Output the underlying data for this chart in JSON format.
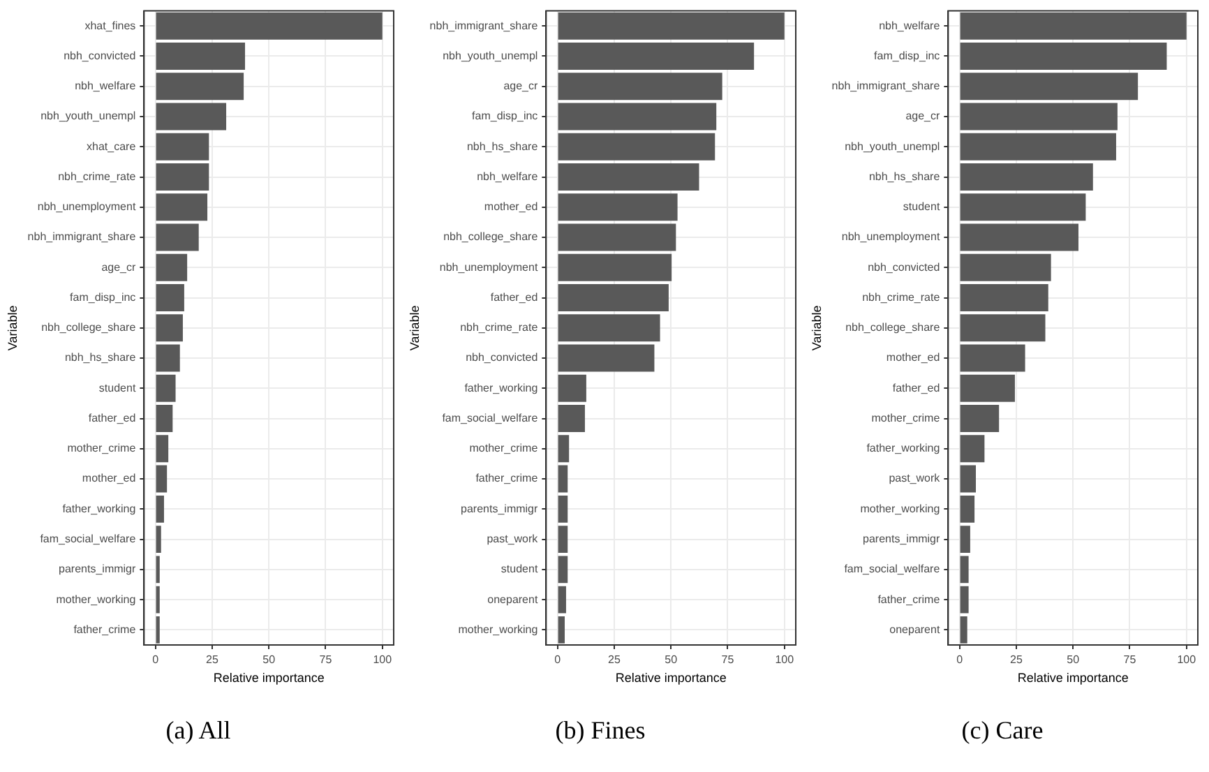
{
  "chart_data": [
    {
      "type": "bar",
      "orientation": "horizontal",
      "title": "(a) All",
      "xlabel": "Relative importance",
      "ylabel": "Variable",
      "categories": [
        "xhat_fines",
        "nbh_convicted",
        "nbh_welfare",
        "nbh_youth_unempl",
        "xhat_care",
        "nbh_crime_rate",
        "nbh_unemployment",
        "nbh_immigrant_share",
        "age_cr",
        "fam_disp_inc",
        "nbh_college_share",
        "nbh_hs_share",
        "student",
        "father_ed",
        "mother_crime",
        "mother_ed",
        "father_working",
        "fam_social_welfare",
        "parents_immigr",
        "mother_working",
        "father_crime"
      ],
      "values": [
        100,
        39.5,
        38.9,
        31.2,
        23.6,
        23.6,
        22.9,
        19.1,
        14,
        12.7,
        12.1,
        10.8,
        8.9,
        7.6,
        5.7,
        5.1,
        3.8,
        2.5,
        1.9,
        1.9,
        1.9
      ],
      "color": "#595959",
      "xlim": [
        -5,
        105
      ],
      "xticks": [
        0,
        25,
        50,
        75,
        100
      ],
      "grid": true,
      "legend": false
    },
    {
      "type": "bar",
      "orientation": "horizontal",
      "title": "(b) Fines",
      "xlabel": "Relative importance",
      "ylabel": "Variable",
      "categories": [
        "nbh_immigrant_share",
        "nbh_youth_unempl",
        "age_cr",
        "fam_disp_inc",
        "nbh_hs_share",
        "nbh_welfare",
        "mother_ed",
        "nbh_college_share",
        "nbh_unemployment",
        "father_ed",
        "nbh_crime_rate",
        "nbh_convicted",
        "father_working",
        "fam_social_welfare",
        "mother_crime",
        "father_crime",
        "parents_immigr",
        "past_work",
        "student",
        "oneparent",
        "mother_working"
      ],
      "values": [
        100,
        86.6,
        72.6,
        70,
        69.4,
        62.4,
        52.9,
        52.2,
        50.3,
        49,
        45.2,
        42.7,
        12.7,
        12.1,
        5.1,
        4.5,
        4.5,
        4.5,
        4.5,
        3.8,
        3.2
      ],
      "color": "#595959",
      "xlim": [
        -5,
        105
      ],
      "xticks": [
        0,
        25,
        50,
        75,
        100
      ],
      "grid": true,
      "legend": false
    },
    {
      "type": "bar",
      "orientation": "horizontal",
      "title": "(c) Care",
      "xlabel": "Relative importance",
      "ylabel": "Variable",
      "categories": [
        "nbh_welfare",
        "fam_disp_inc",
        "nbh_immigrant_share",
        "age_cr",
        "nbh_youth_unempl",
        "nbh_hs_share",
        "student",
        "nbh_unemployment",
        "nbh_convicted",
        "nbh_crime_rate",
        "nbh_college_share",
        "mother_ed",
        "father_ed",
        "mother_crime",
        "father_working",
        "past_work",
        "mother_working",
        "parents_immigr",
        "fam_social_welfare",
        "father_crime",
        "oneparent"
      ],
      "values": [
        100,
        91.3,
        78.6,
        69.6,
        69,
        58.8,
        55.6,
        52.4,
        40.3,
        39.1,
        37.8,
        28.9,
        24.4,
        17.4,
        11,
        7.2,
        6.6,
        4.7,
        4,
        4,
        3.4
      ],
      "color": "#595959",
      "xlim": [
        -5,
        105
      ],
      "xticks": [
        0,
        25,
        50,
        75,
        100
      ],
      "grid": true,
      "legend": false
    }
  ]
}
